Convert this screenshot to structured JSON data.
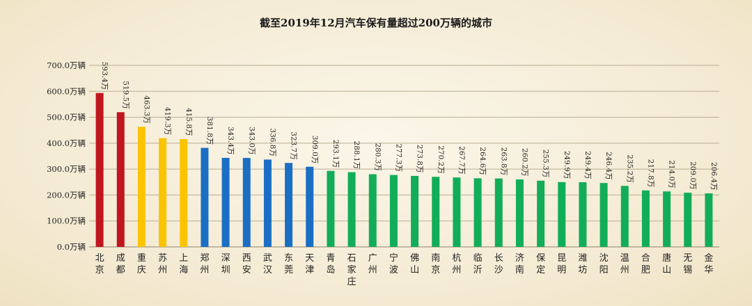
{
  "chart_data": {
    "type": "bar",
    "title": "截至2019年12月汽车保有量超过200万辆的城市",
    "ylim": [
      0,
      700
    ],
    "yticks": [
      "0.0万辆",
      "100.0万辆",
      "200.0万辆",
      "300.0万辆",
      "400.0万辆",
      "500.0万辆",
      "600.0万辆",
      "700.0万辆"
    ],
    "grid": true,
    "categories": [
      "北京",
      "成都",
      "重庆",
      "苏州",
      "上海",
      "郑州",
      "深圳",
      "西安",
      "武汉",
      "东莞",
      "天津",
      "青岛",
      "石家庄",
      "广州",
      "宁波",
      "佛山",
      "南京",
      "杭州",
      "临沂",
      "长沙",
      "济南",
      "保定",
      "昆明",
      "潍坊",
      "沈阳",
      "温州",
      "合肥",
      "唐山",
      "无锡",
      "金华"
    ],
    "values": [
      593.4,
      519.5,
      463.3,
      419.3,
      415.8,
      381.8,
      343.4,
      343.0,
      336.8,
      323.7,
      309.0,
      293.1,
      288.1,
      280.3,
      277.3,
      273.8,
      270.2,
      267.7,
      264.6,
      263.8,
      260.2,
      255.3,
      249.9,
      249.4,
      246.4,
      235.2,
      217.8,
      214.0,
      209.0,
      206.4
    ],
    "data_labels": [
      "593.4万",
      "519.5万",
      "463.3万",
      "419.3万",
      "415.8万",
      "381.8万",
      "343.4万",
      "343.0万",
      "336.8万",
      "323.7万",
      "309.0万",
      "293.1万",
      "288.1万",
      "280.3万",
      "277.3万",
      "273.8万",
      "270.2万",
      "267.7万",
      "264.6万",
      "263.8万",
      "260.2万",
      "255.3万",
      "249.9万",
      "249.4万",
      "246.4万",
      "235.2万",
      "217.8万",
      "214.0万",
      "209.0万",
      "206.4万"
    ],
    "groups": [
      "red",
      "red",
      "yellow",
      "yellow",
      "yellow",
      "blue",
      "blue",
      "blue",
      "blue",
      "blue",
      "blue",
      "green",
      "green",
      "green",
      "green",
      "green",
      "green",
      "green",
      "green",
      "green",
      "green",
      "green",
      "green",
      "green",
      "green",
      "green",
      "green",
      "green",
      "green",
      "green"
    ],
    "colors": {
      "red": "#c0161f",
      "yellow": "#fbc402",
      "blue": "#1a6fc4",
      "green": "#12ad59"
    }
  }
}
